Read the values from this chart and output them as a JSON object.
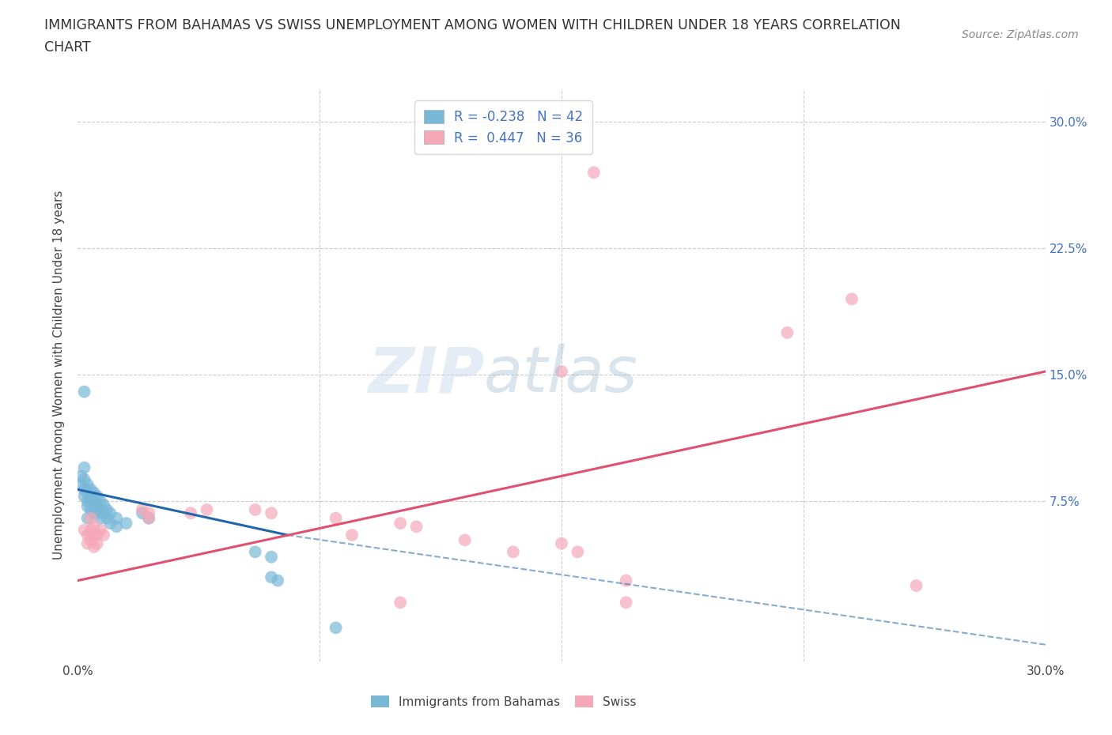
{
  "title_line1": "IMMIGRANTS FROM BAHAMAS VS SWISS UNEMPLOYMENT AMONG WOMEN WITH CHILDREN UNDER 18 YEARS CORRELATION",
  "title_line2": "CHART",
  "source": "Source: ZipAtlas.com",
  "ylabel": "Unemployment Among Women with Children Under 18 years",
  "xlim": [
    0.0,
    0.3
  ],
  "ylim": [
    -0.02,
    0.32
  ],
  "legend_entries": [
    {
      "label": "R = -0.238   N = 42",
      "color": "#a8c8e8"
    },
    {
      "label": "R =  0.447   N = 36",
      "color": "#f4a8b8"
    }
  ],
  "background_color": "#ffffff",
  "grid_color": "#cccccc",
  "blue_color": "#7ab8d8",
  "pink_color": "#f4a8b8",
  "blue_line_color": "#2166ac",
  "pink_line_color": "#e05070",
  "blue_scatter": [
    [
      0.001,
      0.09
    ],
    [
      0.001,
      0.085
    ],
    [
      0.002,
      0.088
    ],
    [
      0.002,
      0.082
    ],
    [
      0.002,
      0.078
    ],
    [
      0.003,
      0.085
    ],
    [
      0.003,
      0.08
    ],
    [
      0.003,
      0.075
    ],
    [
      0.003,
      0.072
    ],
    [
      0.004,
      0.082
    ],
    [
      0.004,
      0.078
    ],
    [
      0.004,
      0.075
    ],
    [
      0.004,
      0.07
    ],
    [
      0.005,
      0.08
    ],
    [
      0.005,
      0.075
    ],
    [
      0.005,
      0.072
    ],
    [
      0.005,
      0.068
    ],
    [
      0.006,
      0.078
    ],
    [
      0.006,
      0.073
    ],
    [
      0.006,
      0.068
    ],
    [
      0.007,
      0.075
    ],
    [
      0.007,
      0.07
    ],
    [
      0.007,
      0.065
    ],
    [
      0.008,
      0.073
    ],
    [
      0.008,
      0.068
    ],
    [
      0.009,
      0.07
    ],
    [
      0.009,
      0.065
    ],
    [
      0.01,
      0.068
    ],
    [
      0.01,
      0.062
    ],
    [
      0.012,
      0.065
    ],
    [
      0.012,
      0.06
    ],
    [
      0.015,
      0.062
    ],
    [
      0.002,
      0.14
    ],
    [
      0.02,
      0.068
    ],
    [
      0.022,
      0.065
    ],
    [
      0.055,
      0.045
    ],
    [
      0.06,
      0.042
    ],
    [
      0.06,
      0.03
    ],
    [
      0.062,
      0.028
    ],
    [
      0.08,
      0.0
    ],
    [
      0.002,
      0.095
    ],
    [
      0.003,
      0.065
    ]
  ],
  "pink_scatter": [
    [
      0.002,
      0.058
    ],
    [
      0.003,
      0.055
    ],
    [
      0.003,
      0.05
    ],
    [
      0.004,
      0.065
    ],
    [
      0.004,
      0.058
    ],
    [
      0.004,
      0.052
    ],
    [
      0.005,
      0.06
    ],
    [
      0.005,
      0.055
    ],
    [
      0.005,
      0.048
    ],
    [
      0.006,
      0.055
    ],
    [
      0.006,
      0.05
    ],
    [
      0.007,
      0.058
    ],
    [
      0.008,
      0.055
    ],
    [
      0.02,
      0.07
    ],
    [
      0.022,
      0.068
    ],
    [
      0.022,
      0.065
    ],
    [
      0.035,
      0.068
    ],
    [
      0.04,
      0.07
    ],
    [
      0.055,
      0.07
    ],
    [
      0.06,
      0.068
    ],
    [
      0.08,
      0.065
    ],
    [
      0.085,
      0.055
    ],
    [
      0.1,
      0.062
    ],
    [
      0.105,
      0.06
    ],
    [
      0.12,
      0.052
    ],
    [
      0.135,
      0.045
    ],
    [
      0.15,
      0.05
    ],
    [
      0.155,
      0.045
    ],
    [
      0.17,
      0.028
    ],
    [
      0.1,
      0.015
    ],
    [
      0.16,
      0.27
    ],
    [
      0.22,
      0.175
    ],
    [
      0.24,
      0.195
    ],
    [
      0.17,
      0.015
    ],
    [
      0.26,
      0.025
    ],
    [
      0.15,
      0.152
    ]
  ],
  "blue_solid_line": {
    "x": [
      0.0,
      0.065
    ],
    "y": [
      0.082,
      0.055
    ]
  },
  "blue_dashed_line": {
    "x": [
      0.065,
      0.3
    ],
    "y": [
      0.055,
      -0.01
    ]
  },
  "pink_solid_line": {
    "x": [
      0.0,
      0.3
    ],
    "y": [
      0.028,
      0.152
    ]
  }
}
